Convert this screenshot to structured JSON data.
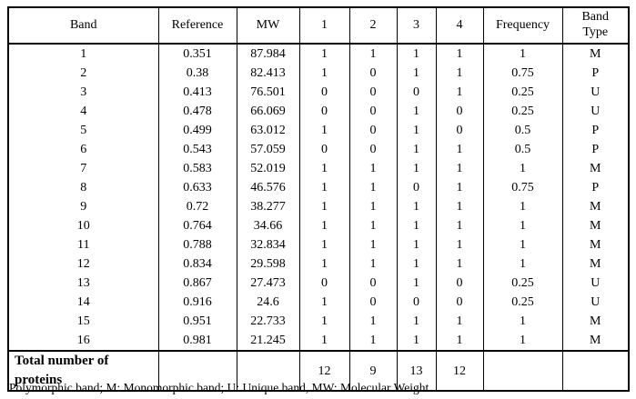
{
  "table": {
    "columns": [
      "Band",
      "Reference",
      "MW",
      "1",
      "2",
      "3",
      "4",
      "Frequency",
      "Band\nType"
    ],
    "rows": [
      [
        "1",
        "0.351",
        "87.984",
        "1",
        "1",
        "1",
        "1",
        "1",
        "M"
      ],
      [
        "2",
        "0.38",
        "82.413",
        "1",
        "0",
        "1",
        "1",
        "0.75",
        "P"
      ],
      [
        "3",
        "0.413",
        "76.501",
        "0",
        "0",
        "0",
        "1",
        "0.25",
        "U"
      ],
      [
        "4",
        "0.478",
        "66.069",
        "0",
        "0",
        "1",
        "0",
        "0.25",
        "U"
      ],
      [
        "5",
        "0.499",
        "63.012",
        "1",
        "0",
        "1",
        "0",
        "0.5",
        "P"
      ],
      [
        "6",
        "0.543",
        "57.059",
        "0",
        "0",
        "1",
        "1",
        "0.5",
        "P"
      ],
      [
        "7",
        "0.583",
        "52.019",
        "1",
        "1",
        "1",
        "1",
        "1",
        "M"
      ],
      [
        "8",
        "0.633",
        "46.576",
        "1",
        "1",
        "0",
        "1",
        "0.75",
        "P"
      ],
      [
        "9",
        "0.72",
        "38.277",
        "1",
        "1",
        "1",
        "1",
        "1",
        "M"
      ],
      [
        "10",
        "0.764",
        "34.66",
        "1",
        "1",
        "1",
        "1",
        "1",
        "M"
      ],
      [
        "11",
        "0.788",
        "32.834",
        "1",
        "1",
        "1",
        "1",
        "1",
        "M"
      ],
      [
        "12",
        "0.834",
        "29.598",
        "1",
        "1",
        "1",
        "1",
        "1",
        "M"
      ],
      [
        "13",
        "0.867",
        "27.473",
        "0",
        "0",
        "1",
        "0",
        "0.25",
        "U"
      ],
      [
        "14",
        "0.916",
        "24.6",
        "1",
        "0",
        "0",
        "0",
        "0.25",
        "U"
      ],
      [
        "15",
        "0.951",
        "22.733",
        "1",
        "1",
        "1",
        "1",
        "1",
        "M"
      ],
      [
        "16",
        "0.981",
        "21.245",
        "1",
        "1",
        "1",
        "1",
        "1",
        "M"
      ]
    ],
    "total_row": {
      "label": "Total number of proteins",
      "values": [
        "",
        "",
        "12",
        "9",
        "13",
        "12",
        "",
        ""
      ]
    }
  },
  "footnote": "Polymorphic band; M: Monomorphic band; U: Unique band, MW: Molecular Weight."
}
